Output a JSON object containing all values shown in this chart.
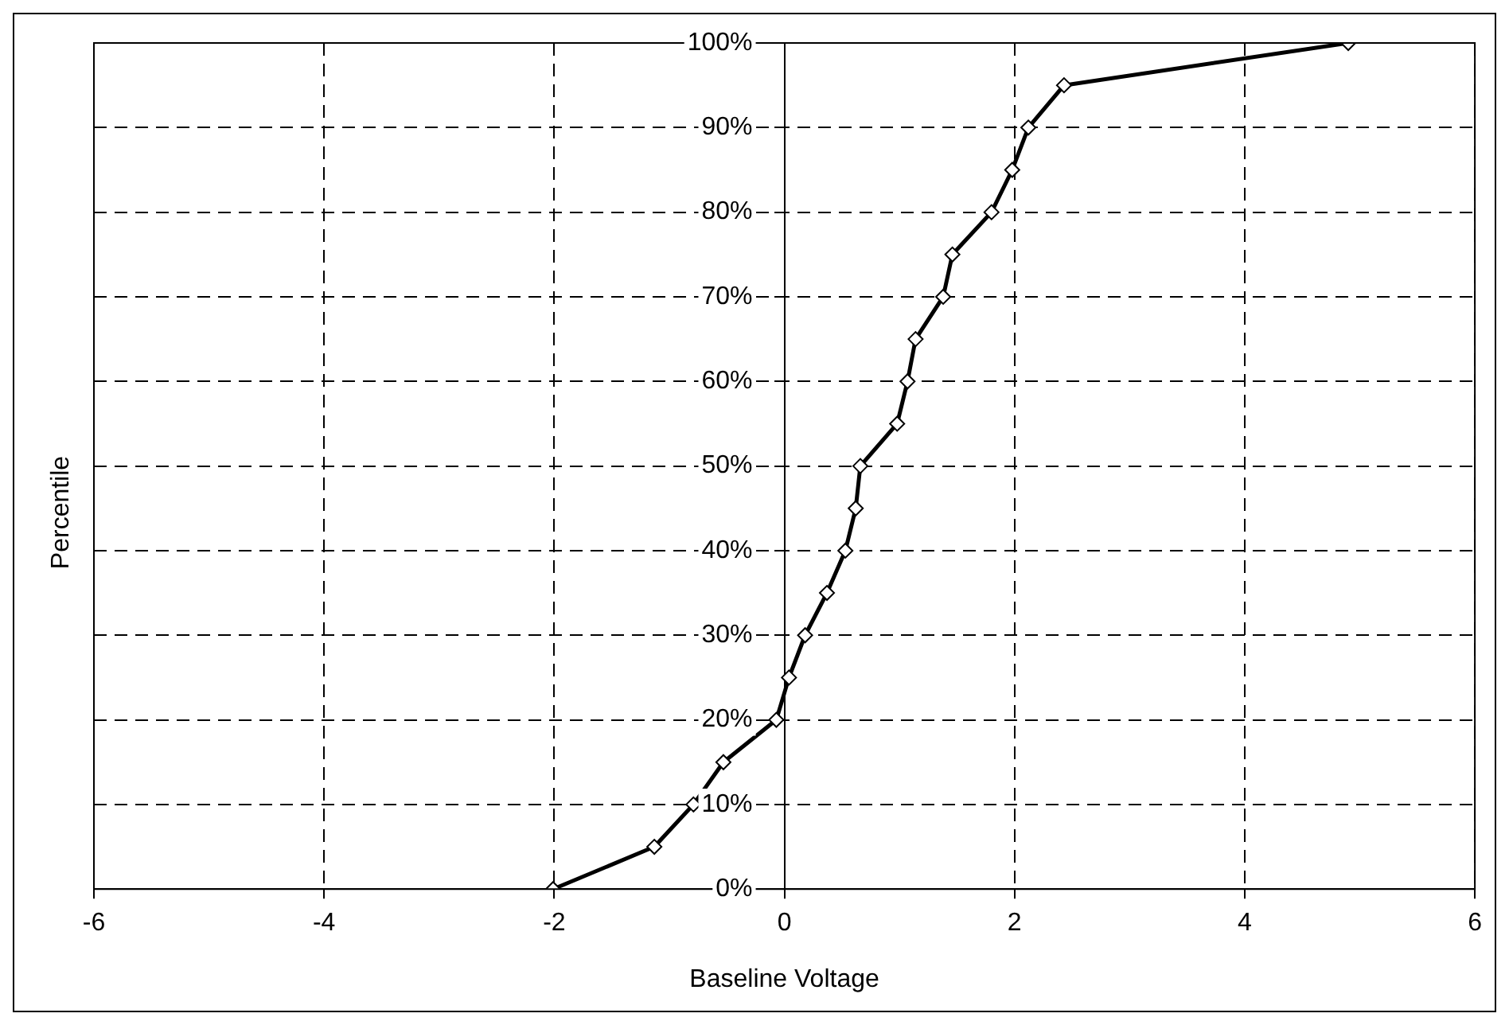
{
  "chart_data": {
    "type": "line",
    "xlabel": "Baseline Voltage",
    "ylabel": "Percentile",
    "series": [
      {
        "color": "#000000",
        "x": [
          -2.01,
          -1.13,
          -0.79,
          -0.53,
          -0.07,
          0.04,
          0.18,
          0.37,
          0.53,
          0.62,
          0.66,
          0.98,
          1.07,
          1.14,
          1.38,
          1.46,
          1.8,
          1.98,
          2.12,
          2.43,
          4.9
        ],
        "values": [
          0,
          5,
          10,
          15,
          20,
          25,
          30,
          35,
          40,
          45,
          50,
          55,
          60,
          65,
          70,
          75,
          80,
          85,
          90,
          95,
          100
        ]
      }
    ],
    "xlim": [
      -6,
      6
    ],
    "xticks": [
      -6,
      -4,
      -2,
      0,
      2,
      4,
      6
    ],
    "ylim": [
      0,
      100
    ],
    "yticks": [
      {
        "value": 0,
        "label": "0%"
      },
      {
        "value": 10,
        "label": "10%"
      },
      {
        "value": 20,
        "label": "20%"
      },
      {
        "value": 30,
        "label": "30%"
      },
      {
        "value": 40,
        "label": "40%"
      },
      {
        "value": 50,
        "label": "50%"
      },
      {
        "value": 60,
        "label": "60%"
      },
      {
        "value": 70,
        "label": "70%"
      },
      {
        "value": 80,
        "label": "80%"
      },
      {
        "value": 90,
        "label": "90%"
      },
      {
        "value": 100,
        "label": "100%"
      }
    ],
    "grid": true,
    "marker": "diamond",
    "line_style": "solid",
    "legend": false
  }
}
